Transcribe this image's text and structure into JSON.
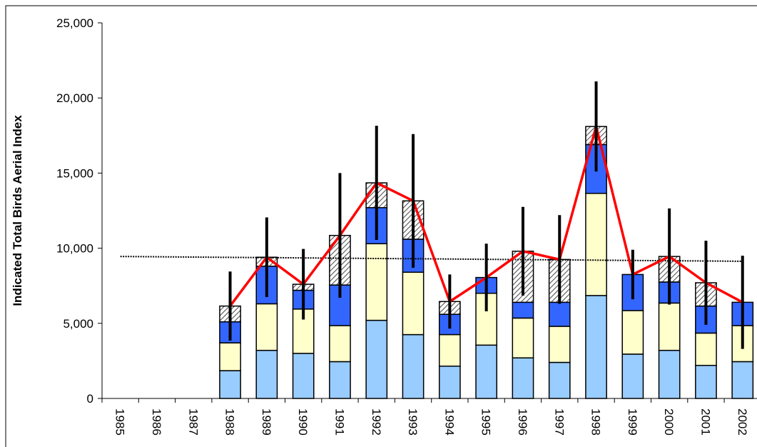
{
  "chart_data": {
    "type": "bar",
    "y_label": "Indicated Total Birds Aerial Index",
    "categories": [
      "1985",
      "1986",
      "1987",
      "1988",
      "1989",
      "1990",
      "1991",
      "1992",
      "1993",
      "1994",
      "1995",
      "1996",
      "1997",
      "1998",
      "1999",
      "2000",
      "2001",
      "2002"
    ],
    "stacked": true,
    "series": [
      {
        "color": "#99ccff",
        "values": [
          null,
          null,
          null,
          1850,
          3200,
          3000,
          2450,
          5200,
          4250,
          2150,
          3550,
          2700,
          2400,
          6850,
          2950,
          3200,
          2200,
          2450
        ]
      },
      {
        "color": "#ffffcc",
        "values": [
          null,
          null,
          null,
          1850,
          3100,
          2950,
          2400,
          5100,
          4150,
          2100,
          3450,
          2650,
          2400,
          6800,
          2900,
          3150,
          2150,
          2400
        ]
      },
      {
        "color": "#3366ff",
        "values": [
          null,
          null,
          null,
          1400,
          2500,
          1250,
          2700,
          2400,
          2200,
          1350,
          1050,
          1050,
          1600,
          3250,
          2400,
          1400,
          1800,
          1550
        ]
      },
      {
        "color": "hatch",
        "values": [
          null,
          null,
          null,
          1050,
          600,
          400,
          3300,
          1650,
          2550,
          850,
          0,
          3400,
          2850,
          1200,
          0,
          1700,
          1550,
          0
        ]
      }
    ],
    "total": {
      "type": "line",
      "color": "#ff0000",
      "values": [
        null,
        null,
        null,
        6150,
        9400,
        7600,
        10850,
        14350,
        13150,
        6450,
        8050,
        9800,
        9250,
        18100,
        8250,
        9450,
        7700,
        6400
      ],
      "errors": [
        null,
        null,
        null,
        2300,
        2650,
        2350,
        4150,
        3800,
        4450,
        1800,
        2250,
        2950,
        2950,
        3000,
        1650,
        3200,
        2800,
        3100
      ]
    },
    "reference_line": {
      "type": "line",
      "color": "#000000",
      "values": [
        9450,
        9430,
        9410,
        9390,
        9375,
        9355,
        9335,
        9315,
        9300,
        9280,
        9260,
        9240,
        9225,
        9205,
        9185,
        9165,
        9150,
        9130
      ]
    },
    "ylim": [
      0,
      25000
    ],
    "yticks": [
      0,
      {
        "value": 5000,
        "label": "5,000"
      },
      {
        "value": 10000,
        "label": "10,000"
      },
      {
        "value": 15000,
        "label": "15,000"
      },
      {
        "value": 20000,
        "label": "20,000"
      },
      {
        "value": 25000,
        "label": "25,000"
      }
    ],
    "grid": false
  }
}
